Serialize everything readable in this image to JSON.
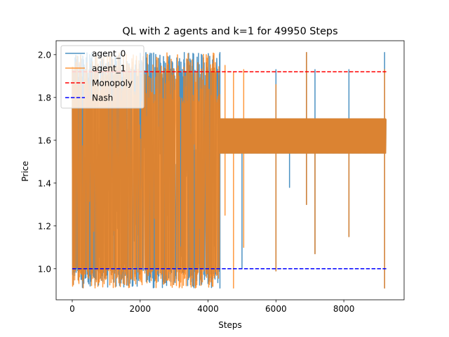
{
  "chart_data": {
    "type": "line",
    "title": "QL with 2 agents and k=1 for 49950 Steps",
    "xlabel": "Steps",
    "ylabel": "Price",
    "xlim": [
      -475,
      9775
    ],
    "ylim": [
      0.855,
      2.065
    ],
    "xticks": [
      0,
      2000,
      4000,
      6000,
      8000
    ],
    "xtick_labels": [
      "0",
      "2000",
      "4000",
      "6000",
      "8000"
    ],
    "yticks": [
      1.0,
      1.2,
      1.4,
      1.6,
      1.8,
      2.0
    ],
    "ytick_labels": [
      "1.0",
      "1.2",
      "1.4",
      "1.6",
      "1.8",
      "2.0"
    ],
    "grid": false,
    "legend_position": "top-left",
    "series": [
      {
        "name": "agent_0",
        "color": "#1f77b4",
        "style": "solid",
        "phases": [
          {
            "x_start": 0,
            "x_end": 4350,
            "low": 0.91,
            "high": 2.01,
            "kind": "oscillation_wide"
          },
          {
            "x_start": 4350,
            "x_end": 9250,
            "low": 1.54,
            "high": 1.7,
            "kind": "oscillation_band"
          }
        ],
        "spikes": [
          {
            "x": 3300,
            "values": [
              1.92,
              2.01
            ]
          },
          {
            "x": 3550,
            "values": [
              1.95
            ]
          },
          {
            "x": 4350,
            "values": [
              2.01,
              0.91
            ]
          },
          {
            "x": 5000,
            "values": [
              1.0
            ]
          },
          {
            "x": 6000,
            "values": [
              1.93,
              0.99
            ]
          },
          {
            "x": 6400,
            "values": [
              1.38
            ]
          },
          {
            "x": 6900,
            "values": [
              2.01,
              1.3
            ]
          },
          {
            "x": 7150,
            "values": [
              1.93,
              1.07
            ]
          },
          {
            "x": 8150,
            "values": [
              1.93,
              1.15
            ]
          },
          {
            "x": 9200,
            "values": [
              2.01,
              0.91
            ]
          }
        ]
      },
      {
        "name": "agent_1",
        "color": "#ff7f0e",
        "style": "solid",
        "phases": [
          {
            "x_start": 0,
            "x_end": 4350,
            "low": 0.91,
            "high": 2.01,
            "kind": "oscillation_wide"
          },
          {
            "x_start": 4350,
            "x_end": 9250,
            "low": 1.54,
            "high": 1.7,
            "kind": "oscillation_band"
          }
        ],
        "spikes": [
          {
            "x": 4500,
            "values": [
              1.95,
              1.25
            ]
          },
          {
            "x": 4750,
            "values": [
              1.92,
              0.91
            ]
          },
          {
            "x": 5050,
            "values": [
              1.93,
              1.1
            ]
          },
          {
            "x": 6000,
            "values": [
              1.86,
              0.99
            ]
          },
          {
            "x": 6900,
            "values": [
              2.01,
              1.3
            ]
          },
          {
            "x": 7150,
            "values": [
              1.07
            ]
          },
          {
            "x": 8150,
            "values": [
              1.15
            ]
          },
          {
            "x": 9200,
            "values": [
              1.93,
              0.91
            ]
          }
        ]
      },
      {
        "name": "Monopoly",
        "color": "#ff0000",
        "style": "dashed",
        "x": [
          0,
          9250
        ],
        "y": [
          1.92,
          1.92
        ]
      },
      {
        "name": "Nash",
        "color": "#0000ff",
        "style": "dashed",
        "x": [
          0,
          9250
        ],
        "y": [
          1.0,
          1.0
        ]
      }
    ]
  }
}
